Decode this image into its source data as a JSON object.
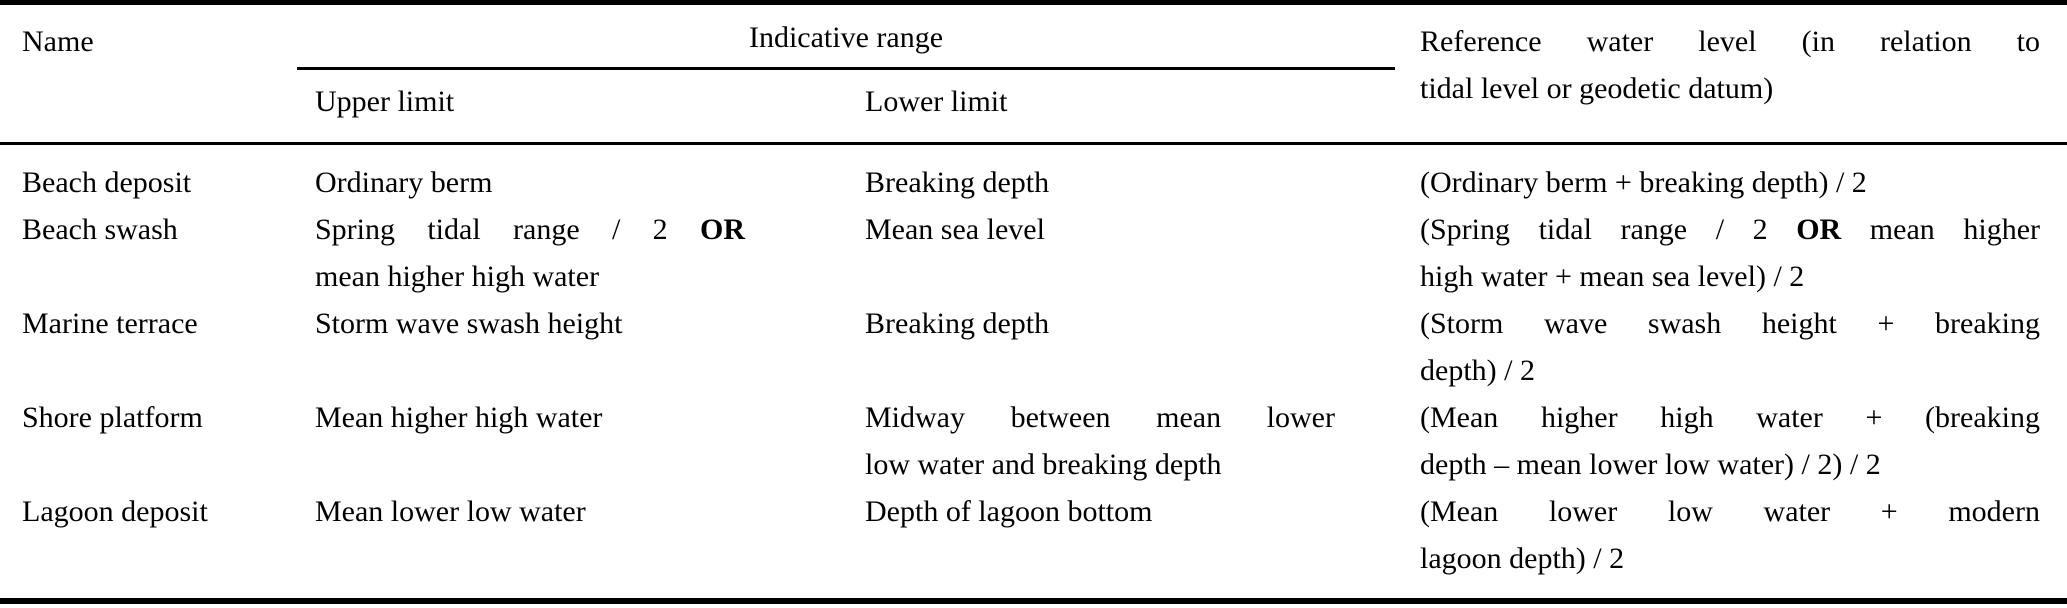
{
  "table": {
    "header": {
      "name": "Name",
      "indicative_range": "Indicative range",
      "upper_limit": "Upper limit",
      "lower_limit": "Lower limit",
      "reference": {
        "lines": [
          "Reference water level (in relation to",
          "tidal level or geodetic datum)"
        ]
      }
    },
    "rows": [
      {
        "name": "Beach deposit",
        "upper": {
          "lines": [
            "Ordinary berm"
          ]
        },
        "lower": {
          "lines": [
            "Breaking depth"
          ]
        },
        "reference": {
          "lines": [
            "(Ordinary berm + breaking depth) / 2"
          ]
        }
      },
      {
        "name": "Beach swash",
        "upper": {
          "lines": [
            "Spring tidal range / 2 **OR**",
            "mean higher high water"
          ]
        },
        "lower": {
          "lines": [
            "Mean sea level"
          ]
        },
        "reference": {
          "lines": [
            "(Spring tidal range / 2 **OR** mean higher",
            "high water + mean sea level) / 2"
          ]
        }
      },
      {
        "name": "Marine terrace",
        "upper": {
          "lines": [
            "Storm wave swash height"
          ]
        },
        "lower": {
          "lines": [
            "Breaking depth"
          ]
        },
        "reference": {
          "lines": [
            "(Storm wave swash height + breaking",
            "depth) / 2"
          ]
        }
      },
      {
        "name": "Shore platform",
        "upper": {
          "lines": [
            "Mean higher high water"
          ]
        },
        "lower": {
          "lines": [
            "Midway between mean lower",
            "low water and breaking depth"
          ]
        },
        "reference": {
          "lines": [
            "(Mean higher high water + (breaking",
            "depth – mean lower low water) / 2) / 2"
          ]
        }
      },
      {
        "name": "Lagoon deposit",
        "upper": {
          "lines": [
            "Mean lower low water"
          ]
        },
        "lower": {
          "lines": [
            "Depth of lagoon bottom"
          ]
        },
        "reference": {
          "lines": [
            "(Mean lower low water + modern",
            "lagoon depth) / 2"
          ]
        }
      }
    ]
  },
  "colors": {
    "text": "#000000",
    "background": "#ffffff",
    "rule": "#000000"
  }
}
